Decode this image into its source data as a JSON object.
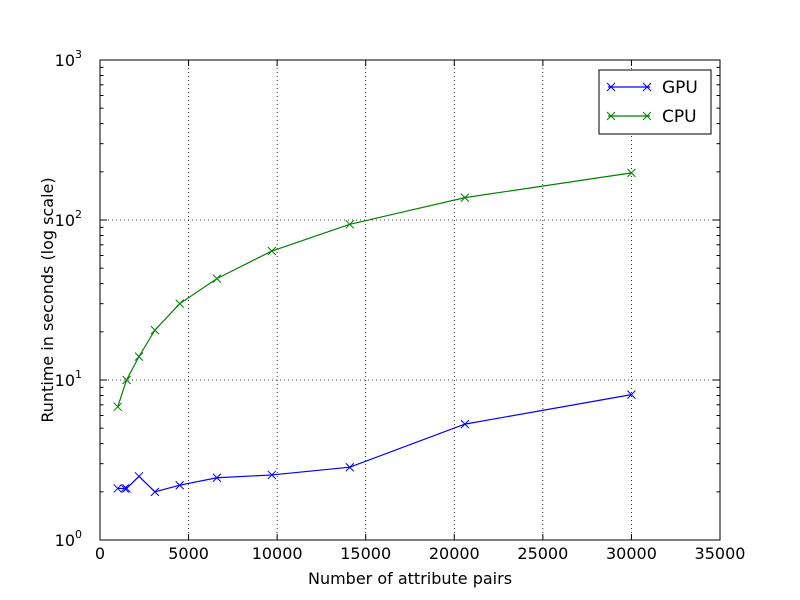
{
  "chart_data": {
    "type": "line",
    "xlabel": "Number of attribute pairs",
    "ylabel": "Runtime in seconds (log scale)",
    "xlim": [
      0,
      35000
    ],
    "ylim": [
      1,
      1000
    ],
    "yscale": "log",
    "grid": true,
    "legend_position": "top-right",
    "x_ticks": [
      "0",
      "5000",
      "10000",
      "15000",
      "20000",
      "25000",
      "30000",
      "35000"
    ],
    "x_tick_values": [
      0,
      5000,
      10000,
      15000,
      20000,
      25000,
      30000,
      35000
    ],
    "y_ticks": [
      {
        "value": 1,
        "base": "10",
        "exp": "0"
      },
      {
        "value": 10,
        "base": "10",
        "exp": "1"
      },
      {
        "value": 100,
        "base": "10",
        "exp": "2"
      },
      {
        "value": 1000,
        "base": "10",
        "exp": "3"
      }
    ],
    "series": [
      {
        "name": "GPU",
        "color": "#0000ff",
        "marker": "x",
        "x": [
          1000,
          1400,
          1500,
          2200,
          3100,
          4500,
          6600,
          9700,
          14100,
          20600,
          30000
        ],
        "y": [
          2.1,
          2.1,
          2.1,
          2.5,
          2.0,
          2.2,
          2.45,
          2.55,
          2.85,
          5.3,
          8.1
        ]
      },
      {
        "name": "CPU",
        "color": "#008000",
        "marker": "x",
        "x": [
          1000,
          1500,
          2200,
          3100,
          4500,
          6600,
          9700,
          14100,
          20600,
          30000
        ],
        "y": [
          6.8,
          10,
          14,
          20.5,
          30,
          43,
          64,
          94,
          138,
          197
        ]
      }
    ]
  }
}
